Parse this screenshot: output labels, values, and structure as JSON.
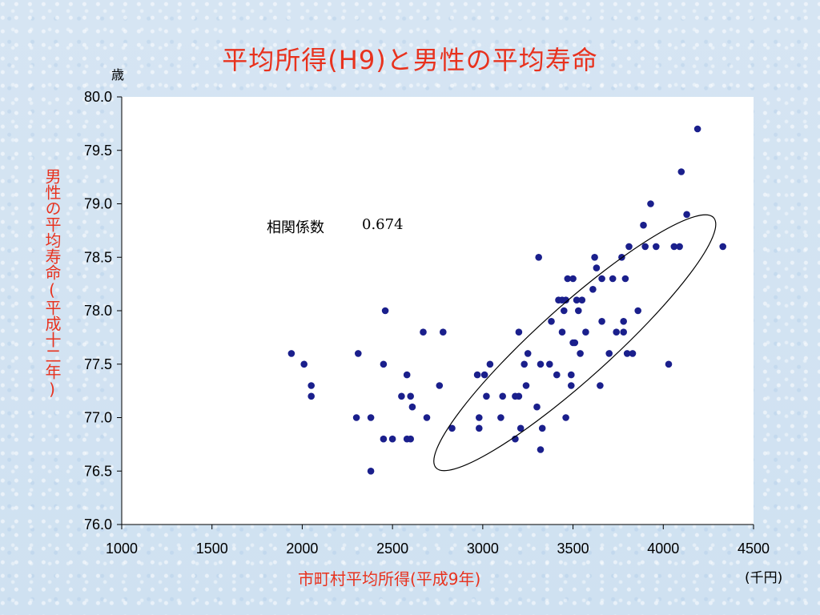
{
  "title": "平均所得(H9)と男性の平均寿命",
  "chart_data": {
    "type": "scatter",
    "title": "平均所得(H9)と男性の平均寿命",
    "xlabel": "市町村平均所得(平成9年)",
    "ylabel": "男性の平均寿命(平成十二年)",
    "x_unit": "(千円)",
    "y_unit": "歳",
    "xlim": [
      1000,
      4500
    ],
    "ylim": [
      76.0,
      80.0
    ],
    "x_ticks": [
      "1000",
      "1500",
      "2000",
      "2500",
      "3000",
      "3500",
      "4000",
      "4500"
    ],
    "y_ticks": [
      "80.0",
      "79.5",
      "79.0",
      "78.5",
      "78.0",
      "77.5",
      "77.0",
      "76.5",
      "76.0"
    ],
    "grid": false,
    "marker_color": "#1a1f8c",
    "annotation": {
      "label": "相関係数",
      "value": "0.674"
    },
    "points": [
      [
        1940,
        77.6
      ],
      [
        2010,
        77.5
      ],
      [
        2050,
        77.3
      ],
      [
        2050,
        77.2
      ],
      [
        2300,
        77.0
      ],
      [
        2310,
        77.6
      ],
      [
        2380,
        77.0
      ],
      [
        2380,
        76.5
      ],
      [
        2450,
        77.5
      ],
      [
        2450,
        76.8
      ],
      [
        2460,
        78.0
      ],
      [
        2500,
        76.8
      ],
      [
        2550,
        77.2
      ],
      [
        2580,
        77.4
      ],
      [
        2580,
        76.8
      ],
      [
        2600,
        77.2
      ],
      [
        2600,
        76.8
      ],
      [
        2610,
        77.1
      ],
      [
        2670,
        77.8
      ],
      [
        2690,
        77.0
      ],
      [
        2760,
        77.3
      ],
      [
        2780,
        77.8
      ],
      [
        2830,
        76.9
      ],
      [
        2970,
        77.4
      ],
      [
        2980,
        77.0
      ],
      [
        2980,
        76.9
      ],
      [
        3010,
        77.4
      ],
      [
        3020,
        77.2
      ],
      [
        3040,
        77.5
      ],
      [
        3100,
        77.0
      ],
      [
        3110,
        77.2
      ],
      [
        3180,
        77.2
      ],
      [
        3180,
        76.8
      ],
      [
        3200,
        77.8
      ],
      [
        3200,
        77.2
      ],
      [
        3210,
        76.9
      ],
      [
        3230,
        77.5
      ],
      [
        3240,
        77.3
      ],
      [
        3250,
        77.6
      ],
      [
        3300,
        77.1
      ],
      [
        3310,
        78.5
      ],
      [
        3320,
        77.5
      ],
      [
        3320,
        76.7
      ],
      [
        3330,
        76.9
      ],
      [
        3370,
        77.5
      ],
      [
        3380,
        77.9
      ],
      [
        3410,
        77.4
      ],
      [
        3420,
        78.1
      ],
      [
        3440,
        78.1
      ],
      [
        3440,
        77.8
      ],
      [
        3450,
        78.0
      ],
      [
        3460,
        78.1
      ],
      [
        3460,
        77.0
      ],
      [
        3470,
        78.3
      ],
      [
        3490,
        77.4
      ],
      [
        3490,
        77.3
      ],
      [
        3500,
        78.3
      ],
      [
        3500,
        77.7
      ],
      [
        3510,
        77.7
      ],
      [
        3520,
        78.1
      ],
      [
        3530,
        78.0
      ],
      [
        3540,
        77.6
      ],
      [
        3550,
        78.1
      ],
      [
        3570,
        77.8
      ],
      [
        3610,
        78.2
      ],
      [
        3620,
        78.5
      ],
      [
        3630,
        78.4
      ],
      [
        3650,
        77.3
      ],
      [
        3660,
        77.9
      ],
      [
        3660,
        78.3
      ],
      [
        3700,
        77.6
      ],
      [
        3720,
        78.3
      ],
      [
        3740,
        77.8
      ],
      [
        3770,
        78.5
      ],
      [
        3780,
        77.9
      ],
      [
        3780,
        77.8
      ],
      [
        3790,
        78.3
      ],
      [
        3800,
        77.6
      ],
      [
        3810,
        78.6
      ],
      [
        3830,
        77.6
      ],
      [
        3860,
        78.0
      ],
      [
        3890,
        78.8
      ],
      [
        3900,
        78.6
      ],
      [
        3930,
        79.0
      ],
      [
        3960,
        78.6
      ],
      [
        4030,
        77.5
      ],
      [
        4060,
        78.6
      ],
      [
        4090,
        78.6
      ],
      [
        4100,
        79.3
      ],
      [
        4130,
        78.9
      ],
      [
        4190,
        79.7
      ],
      [
        4330,
        78.6
      ]
    ],
    "ellipse": {
      "cx": 3510,
      "cy": 77.7,
      "rx_data": 750,
      "ry_data": 0.62,
      "angle_deg": -42
    }
  }
}
